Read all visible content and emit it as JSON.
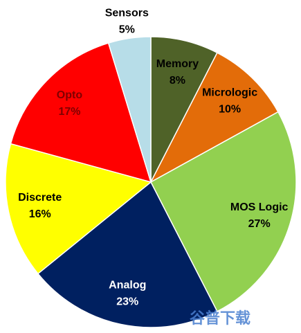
{
  "chart_data": {
    "type": "pie",
    "categories": [
      "Memory",
      "Micrologic",
      "MOS Logic",
      "Analog",
      "Discrete",
      "Opto",
      "Sensors"
    ],
    "values": [
      8,
      10,
      27,
      23,
      16,
      17,
      5
    ],
    "value_labels": [
      "8%",
      "10%",
      "27%",
      "23%",
      "16%",
      "17%",
      "5%"
    ],
    "colors": [
      "#4f6228",
      "#e36c09",
      "#92d050",
      "#002060",
      "#ffff00",
      "#ff0000",
      "#b7dde8"
    ],
    "watermark": "谷普下载"
  }
}
